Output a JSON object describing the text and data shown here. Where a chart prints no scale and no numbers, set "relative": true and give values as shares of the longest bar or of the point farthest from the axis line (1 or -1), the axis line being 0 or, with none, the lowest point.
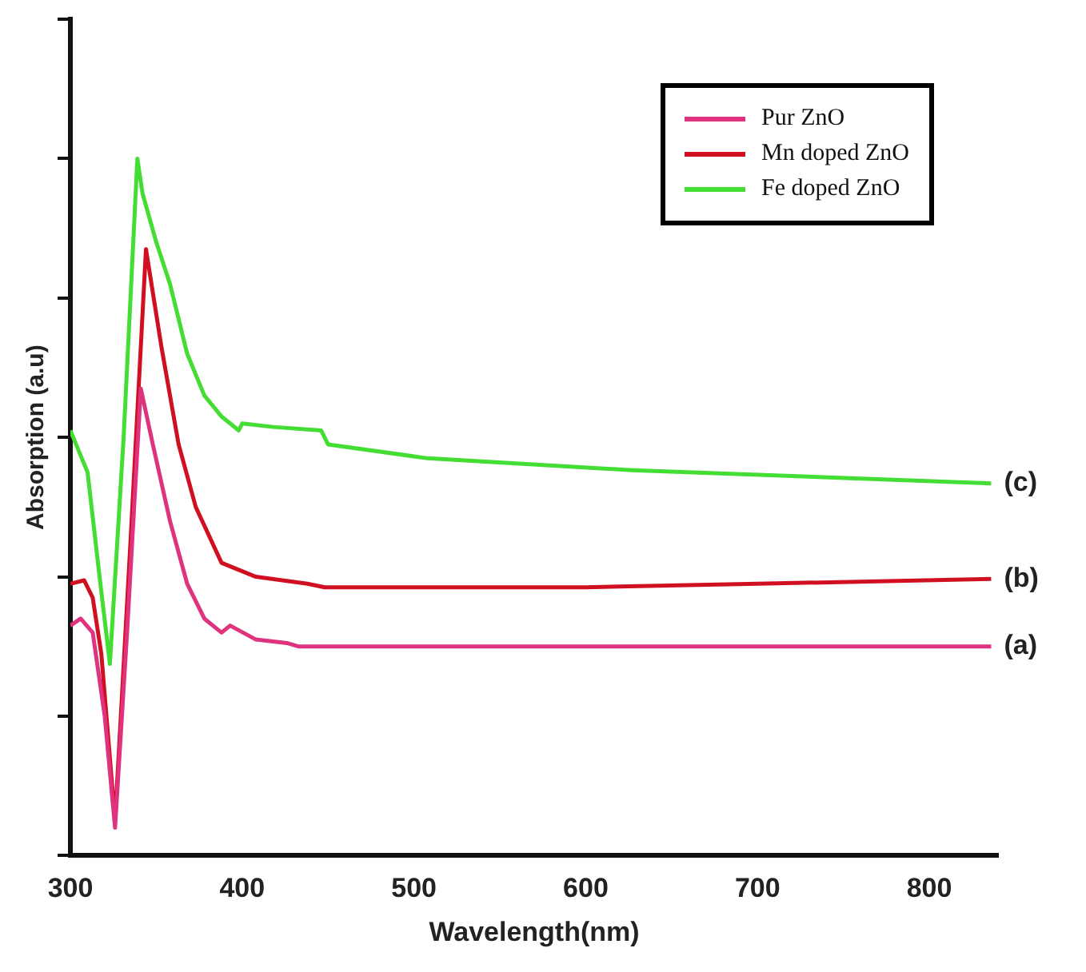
{
  "chart_data": {
    "type": "line",
    "xlabel": "Wavelength(nm)",
    "ylabel": "Absorption (a.u)",
    "relative": true,
    "xlim": [
      300,
      840
    ],
    "xticks": [
      300,
      400,
      500,
      600,
      700,
      800
    ],
    "legend": "top right",
    "grid": false,
    "marker": "none",
    "line_style": "solid",
    "series": [
      {
        "name": "Pur ZnO",
        "color": "#e0337f",
        "x": [
          300,
          306,
          313,
          320,
          326,
          333,
          341,
          348,
          358,
          368,
          378,
          388,
          393,
          408,
          426,
          433,
          500,
          600,
          700,
          836
        ],
        "values": [
          0.33,
          0.34,
          0.32,
          0.2,
          0.04,
          0.32,
          0.67,
          0.59,
          0.48,
          0.39,
          0.34,
          0.32,
          0.33,
          0.31,
          0.305,
          0.3,
          0.3,
          0.3,
          0.3,
          0.3
        ]
      },
      {
        "name": "Mn doped ZnO",
        "color": "#d01020",
        "x": [
          300,
          308,
          313,
          318,
          326,
          335,
          344,
          353,
          363,
          373,
          388,
          408,
          438,
          448,
          500,
          600,
          700,
          836
        ],
        "values": [
          0.39,
          0.395,
          0.37,
          0.29,
          0.05,
          0.45,
          0.87,
          0.73,
          0.59,
          0.5,
          0.42,
          0.4,
          0.39,
          0.385,
          0.385,
          0.385,
          0.39,
          0.397
        ]
      },
      {
        "name": "Fe doped ZnO",
        "color": "#44dd33",
        "x": [
          300,
          305,
          310,
          317,
          323,
          331,
          339,
          342,
          350,
          358,
          368,
          378,
          388,
          398,
          400,
          418,
          446,
          450,
          508,
          627,
          836
        ],
        "values": [
          0.61,
          0.58,
          0.55,
          0.4,
          0.275,
          0.6,
          1,
          0.95,
          0.88,
          0.82,
          0.72,
          0.66,
          0.63,
          0.61,
          0.62,
          0.615,
          0.61,
          0.59,
          0.57,
          0.553,
          0.534
        ]
      }
    ],
    "annotations": [
      "(a)",
      "(b)",
      "(c)"
    ]
  }
}
